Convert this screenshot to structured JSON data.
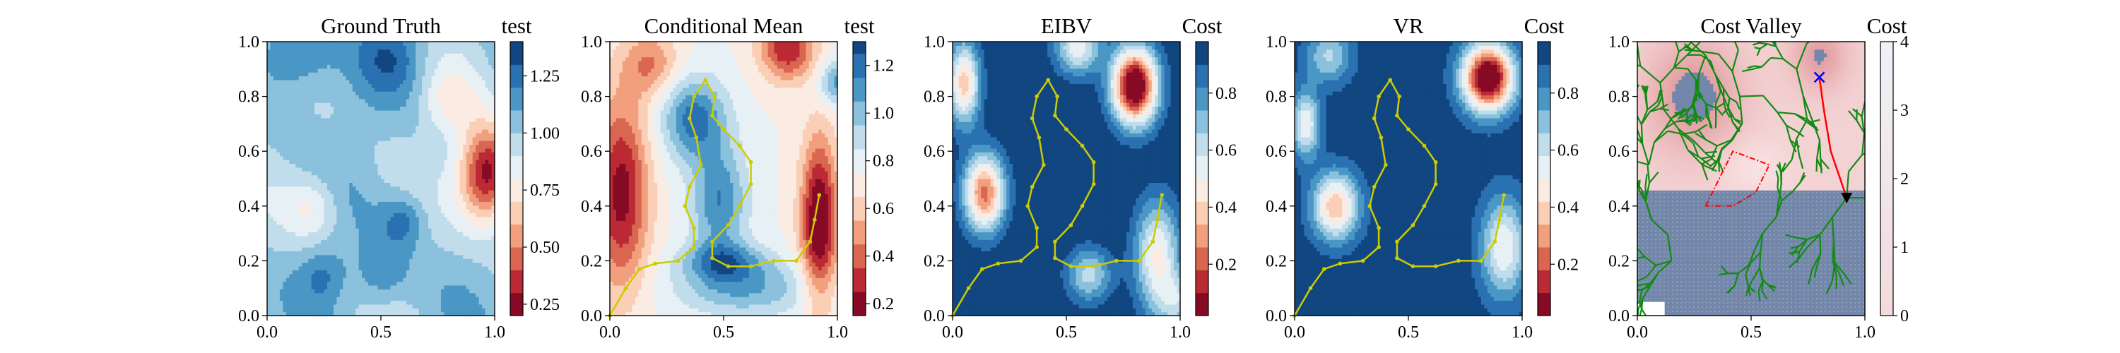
{
  "figure_title": "",
  "chart_data": [
    {
      "type": "heatmap",
      "title": "Ground Truth",
      "colorbar_label": "test",
      "colormap": "RdBu",
      "xlim": [
        0,
        1
      ],
      "ylim": [
        0,
        1
      ],
      "x_ticks": [
        0.0,
        0.5,
        1.0
      ],
      "x_tick_labels": [
        "0.0",
        "0.5",
        "1.0"
      ],
      "y_ticks": [
        0.0,
        0.2,
        0.4,
        0.6,
        0.8,
        1.0
      ],
      "y_tick_labels": [
        "0.0",
        "0.2",
        "0.4",
        "0.6",
        "0.8",
        "1.0"
      ],
      "color_levels": [
        0.2,
        0.3,
        0.4,
        0.5,
        0.6,
        0.7,
        0.8,
        0.9,
        1.0,
        1.1,
        1.2,
        1.3,
        1.4
      ],
      "colorbar_ticks": [
        0.25,
        0.5,
        0.75,
        1.0,
        1.25
      ],
      "colorbar_tick_labels": [
        "0.25",
        "0.50",
        "0.75",
        "1.00",
        "1.25"
      ]
    },
    {
      "type": "heatmap",
      "title": "Conditional Mean",
      "colorbar_label": "test",
      "colormap": "RdBu",
      "xlim": [
        0,
        1
      ],
      "ylim": [
        0,
        1
      ],
      "x_ticks": [
        0.0,
        0.5,
        1.0
      ],
      "x_tick_labels": [
        "0.0",
        "0.5",
        "1.0"
      ],
      "y_ticks": [
        0.0,
        0.2,
        0.4,
        0.6,
        0.8,
        1.0
      ],
      "y_tick_labels": [
        "0.0",
        "0.2",
        "0.4",
        "0.6",
        "0.8",
        "1.0"
      ],
      "color_levels": [
        0.15,
        0.25,
        0.35,
        0.45,
        0.55,
        0.65,
        0.75,
        0.85,
        0.95,
        1.05,
        1.15,
        1.25,
        1.3
      ],
      "colorbar_ticks": [
        0.2,
        0.4,
        0.6,
        0.8,
        1.0,
        1.2
      ],
      "colorbar_tick_labels": [
        "0.2",
        "0.4",
        "0.6",
        "0.8",
        "1.0",
        "1.2"
      ],
      "path_color": "#cccc00",
      "path": [
        [
          0.0,
          0.0
        ],
        [
          0.07,
          0.1
        ],
        [
          0.13,
          0.17
        ],
        [
          0.2,
          0.19
        ],
        [
          0.3,
          0.2
        ],
        [
          0.37,
          0.25
        ],
        [
          0.37,
          0.32
        ],
        [
          0.33,
          0.4
        ],
        [
          0.35,
          0.47
        ],
        [
          0.4,
          0.55
        ],
        [
          0.38,
          0.65
        ],
        [
          0.35,
          0.72
        ],
        [
          0.37,
          0.8
        ],
        [
          0.42,
          0.86
        ],
        [
          0.46,
          0.8
        ],
        [
          0.45,
          0.73
        ],
        [
          0.5,
          0.68
        ],
        [
          0.57,
          0.62
        ],
        [
          0.62,
          0.56
        ],
        [
          0.62,
          0.48
        ],
        [
          0.57,
          0.4
        ],
        [
          0.52,
          0.33
        ],
        [
          0.45,
          0.27
        ],
        [
          0.45,
          0.21
        ],
        [
          0.52,
          0.18
        ],
        [
          0.62,
          0.18
        ],
        [
          0.72,
          0.2
        ],
        [
          0.82,
          0.2
        ],
        [
          0.88,
          0.27
        ],
        [
          0.9,
          0.35
        ],
        [
          0.92,
          0.44
        ]
      ]
    },
    {
      "type": "heatmap",
      "title": "EIBV",
      "colorbar_label": "Cost",
      "colormap": "RdBu",
      "xlim": [
        0,
        1
      ],
      "ylim": [
        0,
        1
      ],
      "x_ticks": [
        0.0,
        0.5,
        1.0
      ],
      "x_tick_labels": [
        "0.0",
        "0.5",
        "1.0"
      ],
      "y_ticks": [
        0.0,
        0.2,
        0.4,
        0.6,
        0.8,
        1.0
      ],
      "y_tick_labels": [
        "0.0",
        "0.2",
        "0.4",
        "0.6",
        "0.8",
        "1.0"
      ],
      "color_levels": [
        0.02,
        0.1,
        0.18,
        0.26,
        0.34,
        0.42,
        0.5,
        0.58,
        0.66,
        0.74,
        0.82,
        0.9,
        0.98
      ],
      "colorbar_ticks": [
        0.2,
        0.4,
        0.6,
        0.8
      ],
      "colorbar_tick_labels": [
        "0.2",
        "0.4",
        "0.6",
        "0.8"
      ],
      "path_color": "#cccc00",
      "path": [
        [
          0.0,
          0.0
        ],
        [
          0.07,
          0.1
        ],
        [
          0.13,
          0.17
        ],
        [
          0.2,
          0.19
        ],
        [
          0.3,
          0.2
        ],
        [
          0.37,
          0.25
        ],
        [
          0.37,
          0.32
        ],
        [
          0.33,
          0.4
        ],
        [
          0.35,
          0.47
        ],
        [
          0.4,
          0.55
        ],
        [
          0.38,
          0.65
        ],
        [
          0.35,
          0.72
        ],
        [
          0.37,
          0.8
        ],
        [
          0.42,
          0.86
        ],
        [
          0.46,
          0.8
        ],
        [
          0.45,
          0.73
        ],
        [
          0.5,
          0.68
        ],
        [
          0.57,
          0.62
        ],
        [
          0.62,
          0.56
        ],
        [
          0.62,
          0.48
        ],
        [
          0.57,
          0.4
        ],
        [
          0.52,
          0.33
        ],
        [
          0.45,
          0.27
        ],
        [
          0.45,
          0.21
        ],
        [
          0.52,
          0.18
        ],
        [
          0.62,
          0.18
        ],
        [
          0.72,
          0.2
        ],
        [
          0.82,
          0.2
        ],
        [
          0.88,
          0.27
        ],
        [
          0.9,
          0.35
        ],
        [
          0.92,
          0.44
        ]
      ]
    },
    {
      "type": "heatmap",
      "title": "VR",
      "colorbar_label": "Cost",
      "colormap": "RdBu",
      "xlim": [
        0,
        1
      ],
      "ylim": [
        0,
        1
      ],
      "x_ticks": [
        0.0,
        0.5,
        1.0
      ],
      "x_tick_labels": [
        "0.0",
        "0.5",
        "1.0"
      ],
      "y_ticks": [
        0.0,
        0.2,
        0.4,
        0.6,
        0.8,
        1.0
      ],
      "y_tick_labels": [
        "0.0",
        "0.2",
        "0.4",
        "0.6",
        "0.8",
        "1.0"
      ],
      "color_levels": [
        0.02,
        0.1,
        0.18,
        0.26,
        0.34,
        0.42,
        0.5,
        0.58,
        0.66,
        0.74,
        0.82,
        0.9,
        0.98
      ],
      "colorbar_ticks": [
        0.2,
        0.4,
        0.6,
        0.8
      ],
      "colorbar_tick_labels": [
        "0.2",
        "0.4",
        "0.6",
        "0.8"
      ],
      "path_color": "#cccc00",
      "path": [
        [
          0.0,
          0.0
        ],
        [
          0.07,
          0.1
        ],
        [
          0.13,
          0.17
        ],
        [
          0.2,
          0.19
        ],
        [
          0.3,
          0.2
        ],
        [
          0.37,
          0.25
        ],
        [
          0.37,
          0.32
        ],
        [
          0.33,
          0.4
        ],
        [
          0.35,
          0.47
        ],
        [
          0.4,
          0.55
        ],
        [
          0.38,
          0.65
        ],
        [
          0.35,
          0.72
        ],
        [
          0.37,
          0.8
        ],
        [
          0.42,
          0.86
        ],
        [
          0.46,
          0.8
        ],
        [
          0.45,
          0.73
        ],
        [
          0.5,
          0.68
        ],
        [
          0.57,
          0.62
        ],
        [
          0.62,
          0.56
        ],
        [
          0.62,
          0.48
        ],
        [
          0.57,
          0.4
        ],
        [
          0.52,
          0.33
        ],
        [
          0.45,
          0.27
        ],
        [
          0.45,
          0.21
        ],
        [
          0.52,
          0.18
        ],
        [
          0.62,
          0.18
        ],
        [
          0.72,
          0.2
        ],
        [
          0.82,
          0.2
        ],
        [
          0.88,
          0.27
        ],
        [
          0.9,
          0.35
        ],
        [
          0.92,
          0.44
        ]
      ]
    },
    {
      "type": "heatmap",
      "title": "Cost Valley",
      "colorbar_label": "Cost",
      "colormap": "RdBu",
      "xlim": [
        0,
        1
      ],
      "ylim": [
        0,
        1
      ],
      "x_ticks": [
        0.0,
        0.5,
        1.0
      ],
      "x_tick_labels": [
        "0.0",
        "0.5",
        "1.0"
      ],
      "y_ticks": [
        0.0,
        0.2,
        0.4,
        0.6,
        0.8,
        1.0
      ],
      "y_tick_labels": [
        "0.0",
        "0.2",
        "0.4",
        "0.6",
        "0.8",
        "1.0"
      ],
      "color_range": [
        0,
        4
      ],
      "colorbar_ticks": [
        0,
        1,
        2,
        3,
        4
      ],
      "colorbar_tick_labels": [
        "0",
        "1",
        "2",
        "3",
        "4"
      ],
      "tree_color": "#138a13",
      "target_marker": {
        "x": 0.8,
        "y": 0.87,
        "symbol": "x",
        "color": "#0000ff"
      },
      "current_marker": {
        "x": 0.92,
        "y": 0.43,
        "symbol": "triangle-down",
        "color": "#000000"
      },
      "selected_path_color": "#ff0000",
      "selected_path": [
        [
          0.92,
          0.43
        ],
        [
          0.85,
          0.6
        ],
        [
          0.82,
          0.75
        ],
        [
          0.8,
          0.87
        ]
      ],
      "ellipse_polygon_color": "#ff0000",
      "ellipse_polygon": [
        [
          0.3,
          0.4
        ],
        [
          0.42,
          0.6
        ],
        [
          0.58,
          0.55
        ],
        [
          0.52,
          0.45
        ],
        [
          0.42,
          0.4
        ]
      ]
    }
  ]
}
